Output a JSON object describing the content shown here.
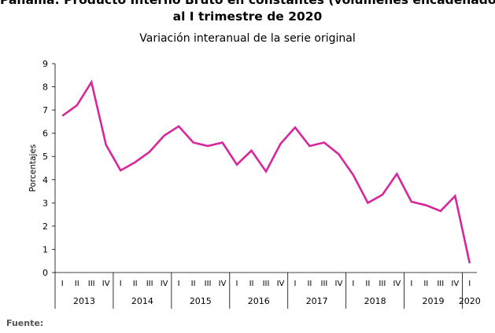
{
  "chart_data": {
    "type": "line",
    "title_line1": "Panamá: Producto Interno Bruto en constantes (volúmenes encadenados)",
    "title_line2": "al I trimestre de 2020",
    "subtitle": "Variación interanual de la serie original",
    "ylabel": "Porcentajes",
    "ylim": [
      0,
      9
    ],
    "yticks": [
      "0",
      "1",
      "2",
      "3",
      "4",
      "5",
      "6",
      "7",
      "8",
      "9"
    ],
    "quarter_labels": [
      "I",
      "II",
      "III",
      "IV"
    ],
    "years": [
      {
        "label": "2013",
        "quarters": 4
      },
      {
        "label": "2014",
        "quarters": 4
      },
      {
        "label": "2015",
        "quarters": 4
      },
      {
        "label": "2016",
        "quarters": 4
      },
      {
        "label": "2017",
        "quarters": 4
      },
      {
        "label": "2018",
        "quarters": 4
      },
      {
        "label": "2019",
        "quarters": 4
      },
      {
        "label": "2020",
        "quarters": 1
      }
    ],
    "series": [
      {
        "color": "#d8279a",
        "values": [
          6.75,
          7.2,
          8.2,
          5.5,
          4.4,
          4.75,
          5.2,
          5.9,
          6.3,
          5.6,
          5.45,
          5.6,
          4.65,
          5.25,
          4.35,
          5.55,
          6.25,
          5.45,
          5.6,
          5.1,
          4.2,
          3.0,
          3.35,
          4.25,
          3.05,
          2.9,
          2.65,
          3.3,
          0.4
        ]
      }
    ]
  },
  "source_label": "Fuente:"
}
